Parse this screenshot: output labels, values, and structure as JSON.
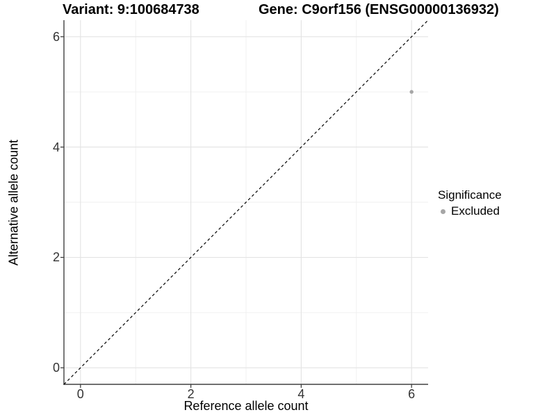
{
  "chart_data": {
    "type": "scatter",
    "title": [
      "Variant: 9:100684738",
      "Gene: C9orf156 (ENSG00000136932)"
    ],
    "xlabel": "Reference allele count",
    "ylabel": "Alternative allele count",
    "xlim": [
      -0.3,
      6.3
    ],
    "ylim": [
      -0.3,
      6.3
    ],
    "x_ticks": [
      0,
      2,
      4,
      6
    ],
    "y_ticks": [
      0,
      2,
      4,
      6
    ],
    "x_minor_gridlines": [
      1,
      3,
      5
    ],
    "y_minor_gridlines": [
      1,
      3,
      5
    ],
    "grid": "major+minor",
    "identity_line": {
      "slope": 1,
      "intercept": 0,
      "style": "dashed",
      "color": "#000000"
    },
    "series": [
      {
        "name": "Excluded",
        "color": "#a6a6a6",
        "points": [
          {
            "x": 6,
            "y": 5
          }
        ]
      }
    ],
    "legend": {
      "position": "right",
      "title": "Significance",
      "items": [
        {
          "label": "Excluded",
          "color": "#a6a6a6"
        }
      ]
    }
  },
  "colors": {
    "background": "#ffffff",
    "grid_major": "#e3e3e3",
    "grid_minor": "#efefef",
    "axis_line": "#404040",
    "tick_label": "#333333",
    "title_text": "#000000"
  }
}
